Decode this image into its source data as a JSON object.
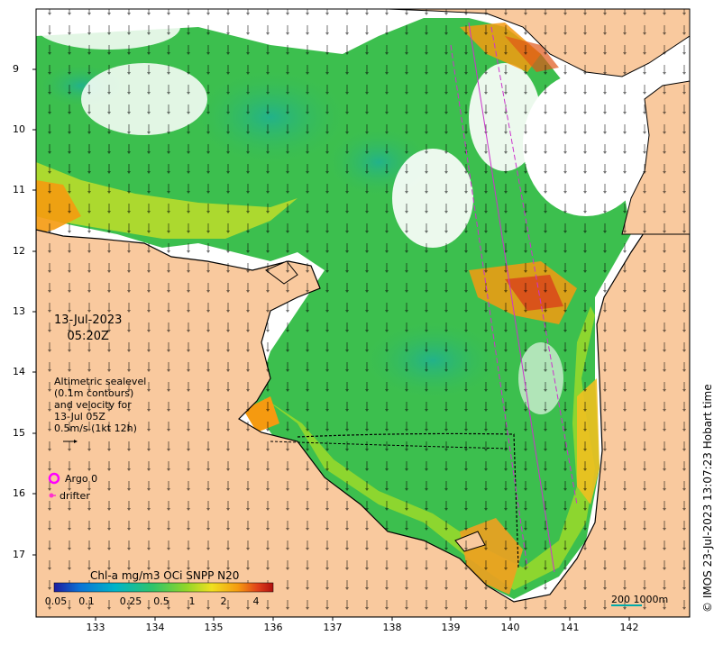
{
  "map": {
    "date": "13-Jul-2023",
    "time": "05:20Z",
    "altimetry_legend": [
      "Altimetric sealevel",
      "(0.1m contours)",
      "and velocity for",
      "13-Jul 05Z",
      "0.5m/s (1kt 12h)"
    ],
    "argo_label": "Argo 0",
    "drifter_label": "drifter",
    "colorbar_title": "Chl-a mg/m3 OCi SNPP N20",
    "colorbar_ticks": [
      "0.05",
      "0.1",
      "0.25",
      "0.5",
      "1",
      "2",
      "4"
    ],
    "scale_label": "200  1000m",
    "credit": "© IMOS 23-Jul-2023 13:07:23 Hobart time",
    "lat_ticks": [
      "9",
      "10",
      "11",
      "12",
      "13",
      "14",
      "15",
      "16",
      "17"
    ],
    "lon_ticks": [
      "133",
      "134",
      "135",
      "136",
      "137",
      "138",
      "139",
      "140",
      "141",
      "142"
    ],
    "colors": {
      "land": "#f9c99e",
      "ocean_bg": "#ffffff",
      "argo": "#ff00ff",
      "drifter": "#ff33cc",
      "colorbar": [
        "#1d1ba0",
        "#0a74d6",
        "#00b4c8",
        "#2fc46a",
        "#8ed62a",
        "#f0e020",
        "#f59a10",
        "#e0401a",
        "#b01010"
      ]
    }
  }
}
